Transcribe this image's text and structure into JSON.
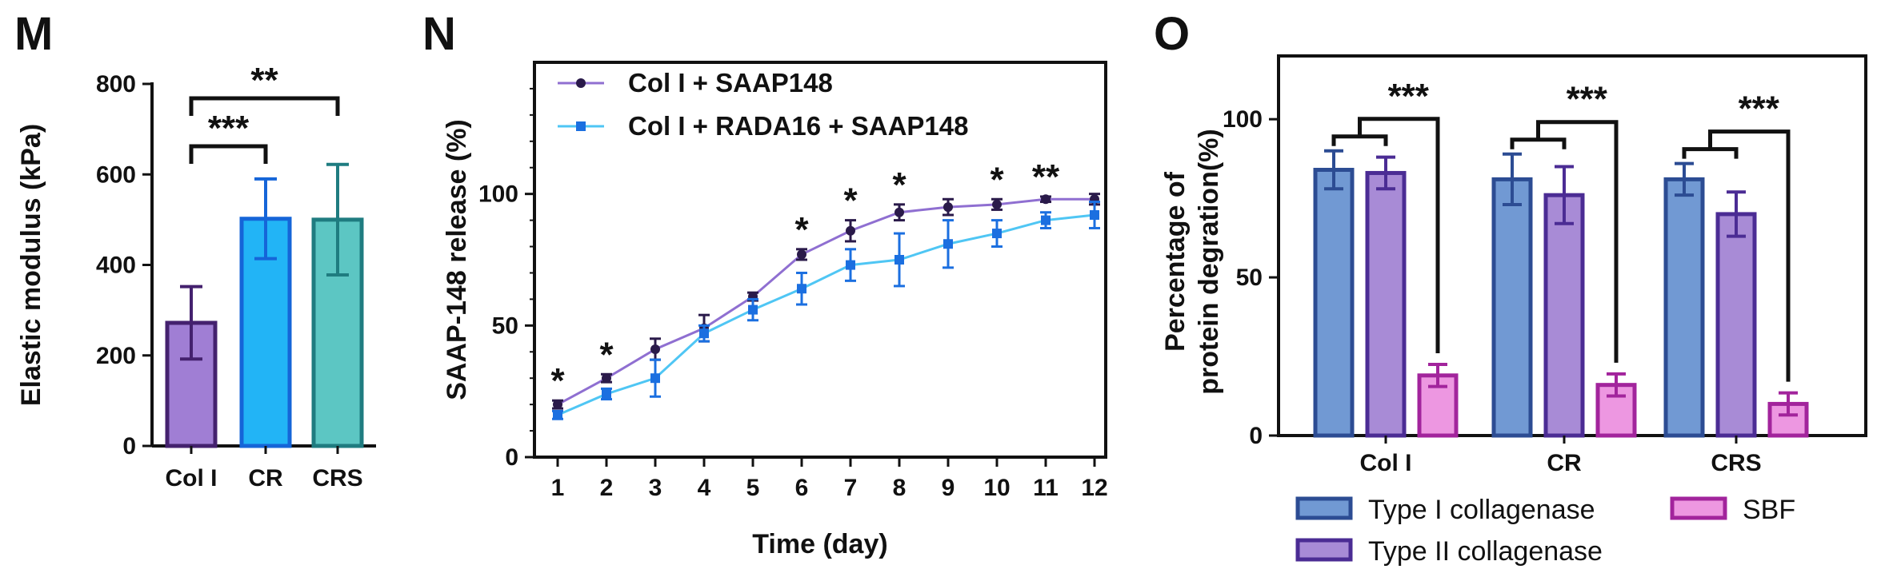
{
  "chart_data": [
    {
      "panel": "M",
      "type": "bar",
      "ylabel": "Elastic modulus (kPa)",
      "xlabel": "",
      "ylim": [
        0,
        800
      ],
      "yticks": [
        0,
        200,
        400,
        600,
        800
      ],
      "categories": [
        "Col I",
        "CR",
        "CRS"
      ],
      "values": [
        272,
        502,
        500
      ],
      "errors": [
        80,
        88,
        122
      ],
      "colors": {
        "fill": [
          "#a07ed4",
          "#22b4f6",
          "#5cc6c3"
        ],
        "edge": [
          "#44216e",
          "#1565d8",
          "#1f7c80"
        ]
      },
      "significance": [
        {
          "from": 0,
          "to": 1,
          "label": "***"
        },
        {
          "from": 0,
          "to": 2,
          "label": "**"
        }
      ]
    },
    {
      "panel": "N",
      "type": "line",
      "ylabel": "SAAP-148 release (%)",
      "xlabel": "Time (day)",
      "ylim": [
        0,
        150
      ],
      "yticks": [
        0,
        50,
        100
      ],
      "x": [
        1,
        2,
        3,
        4,
        5,
        6,
        7,
        8,
        9,
        10,
        11,
        12
      ],
      "series": [
        {
          "name": "Col I + SAAP148",
          "color": "#8f6fd1",
          "marker_color": "#2a1a4a",
          "values": [
            20,
            30,
            41,
            49,
            61,
            77,
            86,
            93,
            95,
            96,
            98,
            98
          ],
          "errors": [
            1.5,
            1.5,
            4,
            5,
            1.5,
            2,
            4,
            3,
            3,
            2,
            1,
            2
          ]
        },
        {
          "name": "Col I + RADA16 + SAAP148",
          "color": "#4fc6f4",
          "marker_color": "#1b6fe0",
          "values": [
            16,
            24,
            30,
            47,
            56,
            64,
            73,
            75,
            81,
            85,
            90,
            92
          ],
          "errors": [
            1.5,
            2,
            7,
            3,
            4,
            6,
            6,
            10,
            9,
            5,
            3,
            5
          ]
        }
      ],
      "significance": [
        {
          "x": 1,
          "label": "*"
        },
        {
          "x": 2,
          "label": "*"
        },
        {
          "x": 6,
          "label": "*"
        },
        {
          "x": 7,
          "label": "*"
        },
        {
          "x": 8,
          "label": "*"
        },
        {
          "x": 10,
          "label": "*"
        },
        {
          "x": 11,
          "label": "**"
        }
      ]
    },
    {
      "panel": "O",
      "type": "bar",
      "ylabel": "Percentage of\nprotein degration(%)",
      "xlabel": "",
      "ylim": [
        0,
        120
      ],
      "yticks": [
        0,
        50,
        100
      ],
      "categories": [
        "Col I",
        "CR",
        "CRS"
      ],
      "series": [
        {
          "name": "Type I collagenase",
          "fill": "#7199d3",
          "edge": "#2c4c93",
          "values": [
            84,
            81,
            81
          ],
          "errors": [
            6,
            8,
            5
          ]
        },
        {
          "name": "Type II collagenase",
          "fill": "#a88bd6",
          "edge": "#4b2c94",
          "values": [
            83,
            76,
            70
          ],
          "errors": [
            5,
            9,
            7
          ]
        },
        {
          "name": "SBF",
          "fill": "#ed97e1",
          "edge": "#a2249c",
          "values": [
            19,
            16,
            10
          ],
          "errors": [
            3.5,
            3.5,
            3.5
          ]
        }
      ],
      "significance": [
        {
          "category": 0,
          "label": "***"
        },
        {
          "category": 1,
          "label": "***"
        },
        {
          "category": 2,
          "label": "***"
        }
      ]
    }
  ]
}
